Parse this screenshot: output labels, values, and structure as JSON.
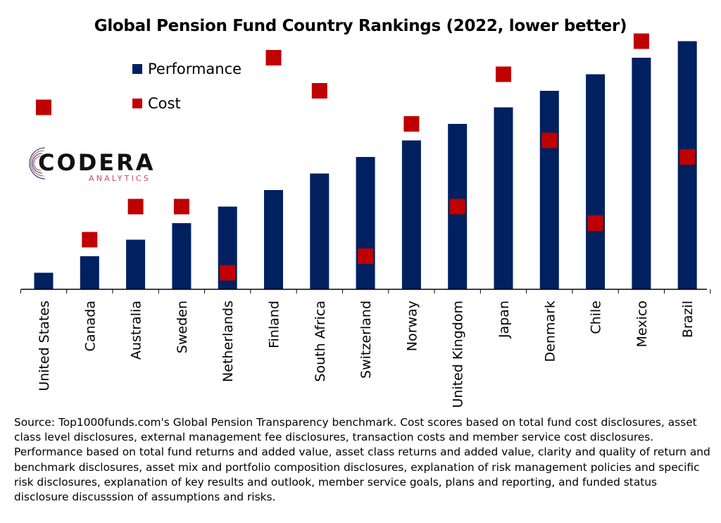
{
  "chart_data": {
    "type": "bar",
    "title": "Global Pension Fund Country Rankings (2022, lower better)",
    "categories": [
      "United States",
      "Canada",
      "Australia",
      "Sweden",
      "Netherlands",
      "Finland",
      "South Africa",
      "Switzerland",
      "Norway",
      "United Kingdom",
      "Japan",
      "Denmark",
      "Chile",
      "Mexico",
      "Brazil"
    ],
    "series": [
      {
        "name": "Performance",
        "kind": "bar",
        "color": "#002060",
        "values": [
          1,
          2,
          3,
          4,
          5,
          6,
          7,
          8,
          9,
          10,
          11,
          12,
          13,
          14,
          15
        ]
      },
      {
        "name": "Cost",
        "kind": "marker",
        "color": "#C00000",
        "values": [
          11,
          3,
          5,
          5,
          1,
          14,
          12,
          2,
          10,
          5,
          13,
          9,
          4,
          15,
          8
        ]
      }
    ],
    "ylim": [
      0,
      15
    ],
    "xlabel": "",
    "ylabel": "",
    "grid": false,
    "legend_position": "top-left"
  },
  "logo": {
    "word": "CODERA",
    "sub": "ANALYTICS"
  },
  "source_note": "Source: Top1000funds.com's Global Pension Transparency benchmark. Cost scores based on total fund cost disclosures, asset class level disclosures, external management fee disclosures, transaction costs and member service cost disclosures. Performance based on total fund returns and added value, asset class returns and added value, clarity and quality of return and benchmark disclosures, asset mix and portfolio composition disclosures, explanation of risk management policies and specific risk disclosures, explanation of key results and outlook, member service goals, plans and reporting, and funded status disclosure discusssion of assumptions and risks."
}
